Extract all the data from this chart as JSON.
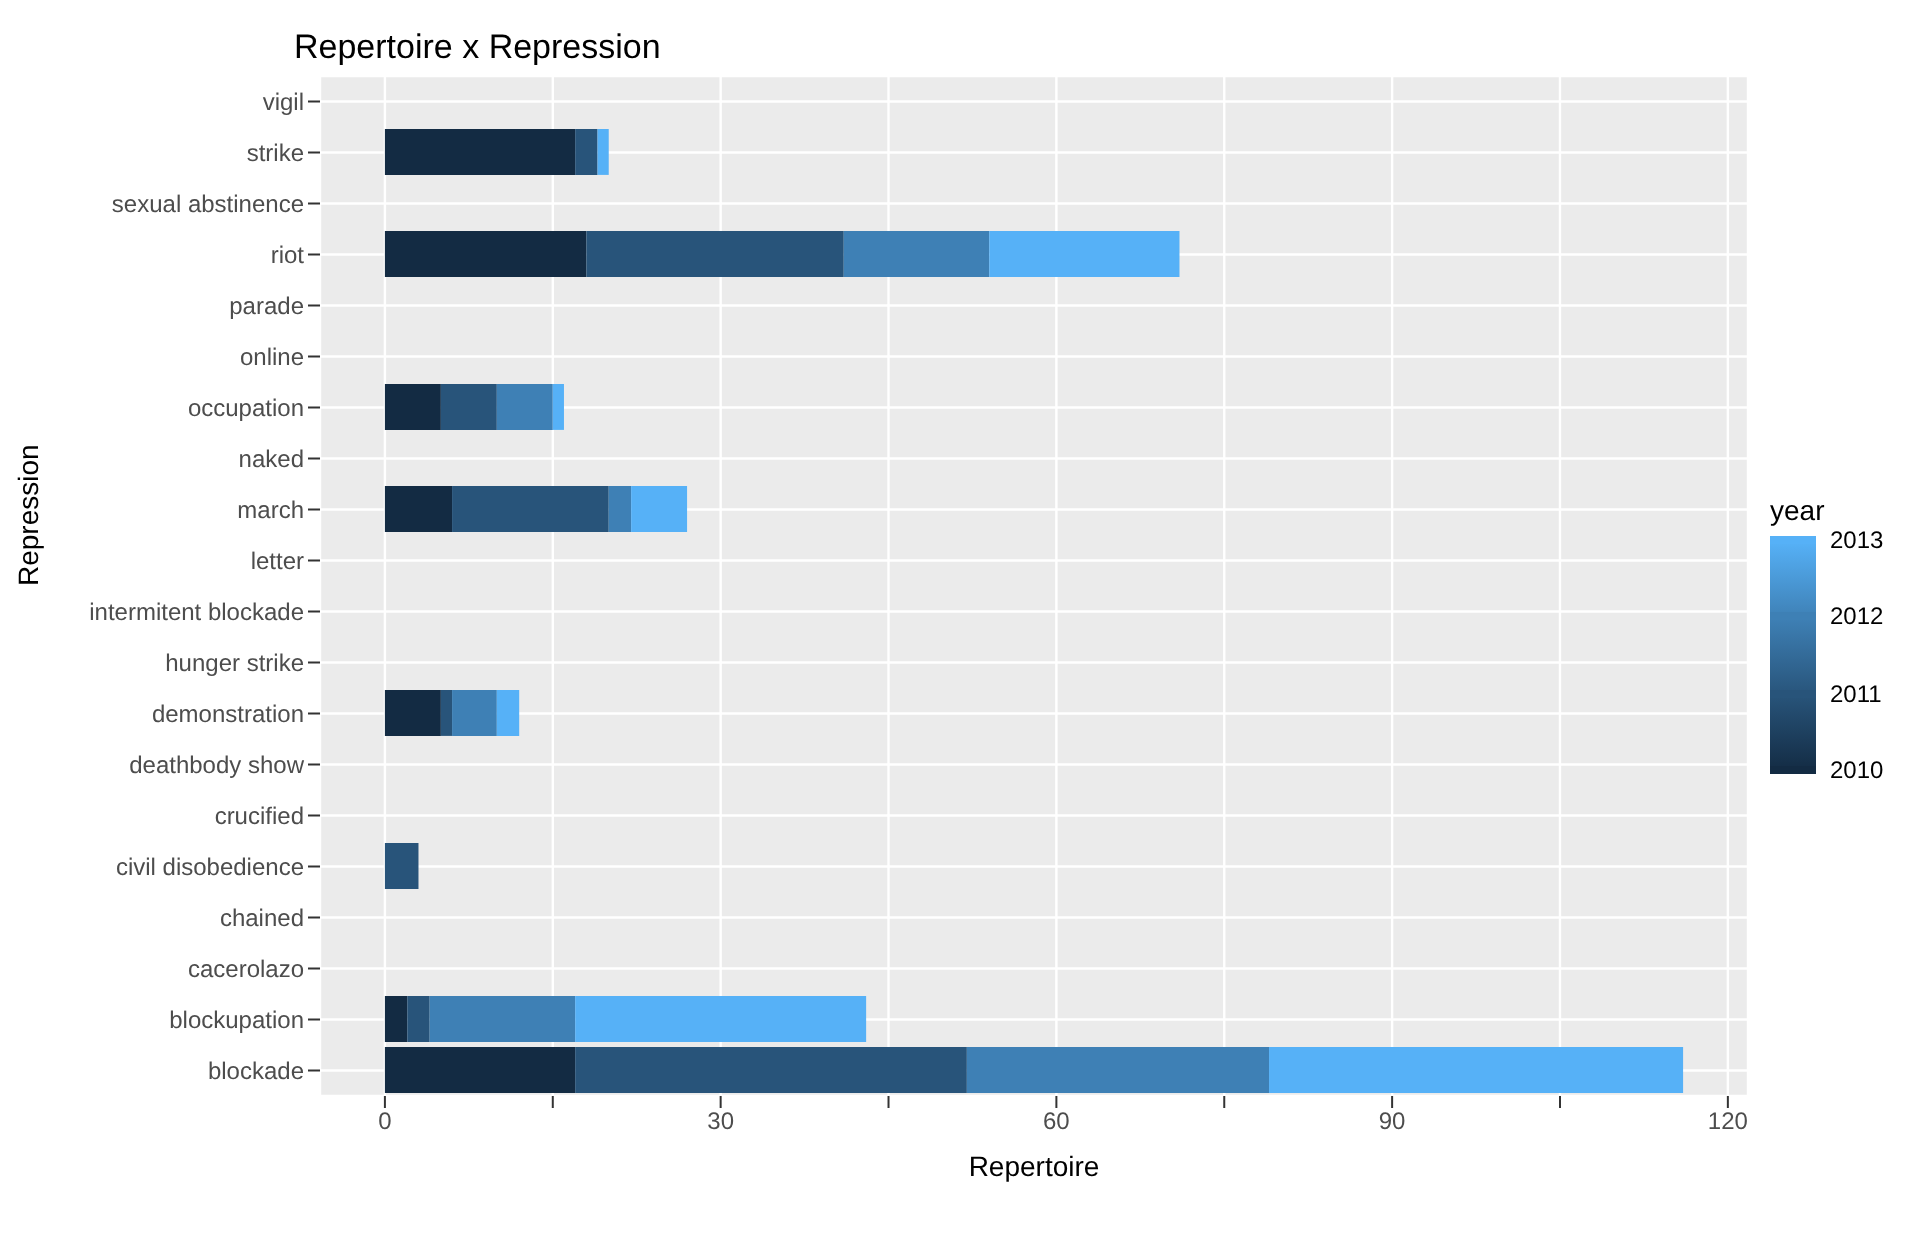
{
  "chart_data": {
    "type": "bar",
    "orientation": "horizontal",
    "stacked": true,
    "title": "Repertoire x Repression",
    "xlabel": "Repertoire",
    "ylabel": "Repression",
    "legend_title": "year",
    "categories": [
      "vigil",
      "strike",
      "sexual abstinence",
      "riot",
      "parade",
      "online",
      "occupation",
      "naked",
      "march",
      "letter",
      "intermitent blockade",
      "hunger strike",
      "demonstration",
      "deathbody show",
      "crucified",
      "civil disobedience",
      "chained",
      "cacerolazo",
      "blockupation",
      "blockade"
    ],
    "series": [
      {
        "name": "2010",
        "color": "#132b43",
        "values": [
          null,
          17,
          null,
          18,
          null,
          null,
          5,
          null,
          6,
          null,
          null,
          null,
          5,
          null,
          null,
          null,
          null,
          null,
          2,
          17
        ]
      },
      {
        "name": "2011",
        "color": "#28547a",
        "values": [
          null,
          2,
          null,
          23,
          null,
          null,
          5,
          null,
          14,
          null,
          null,
          null,
          1,
          null,
          null,
          3,
          null,
          null,
          2,
          35
        ]
      },
      {
        "name": "2012",
        "color": "#3e80b5",
        "values": [
          null,
          null,
          null,
          13,
          null,
          null,
          5,
          null,
          2,
          null,
          null,
          null,
          4,
          null,
          null,
          null,
          null,
          null,
          13,
          27
        ]
      },
      {
        "name": "2013",
        "color": "#56b1f7",
        "values": [
          null,
          1,
          null,
          17,
          null,
          null,
          1,
          null,
          5,
          null,
          null,
          null,
          2,
          null,
          null,
          null,
          null,
          null,
          26,
          37
        ]
      }
    ],
    "xlim": [
      -5.8,
      121.8
    ],
    "xticks": [
      0,
      {
        "value": 15,
        "label": null
      },
      30,
      {
        "value": 45,
        "label": null
      },
      60,
      {
        "value": 75,
        "label": null
      },
      90,
      {
        "value": 105,
        "label": null
      },
      120
    ],
    "grid": true,
    "legend": "right"
  }
}
